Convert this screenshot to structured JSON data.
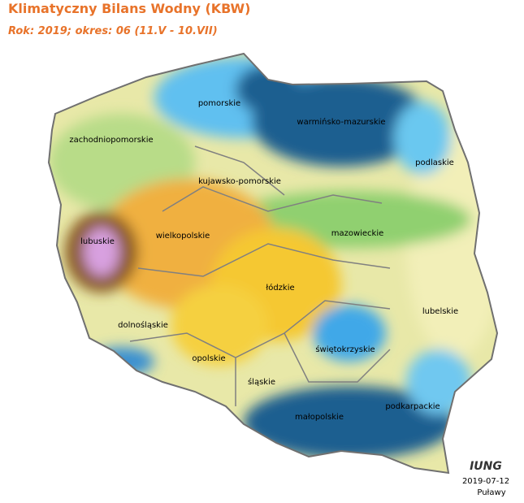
{
  "title": "Klimatyczny Bilans Wodny (KBW)",
  "subtitle": "Rok: 2019; okres: 06 (11.V - 10.VII)",
  "regions": [
    "pomorskie",
    "warmińsko-mazurskie",
    "zachodniopomorskie",
    "podlaskie",
    "kujawsko-pomorskie",
    "mazowieckie",
    "wielkopolskie",
    "lubuskie",
    "łódzkie",
    "lubelskie",
    "dolnośląskie",
    "świętokrzyskie",
    "opolskie",
    "śląskie",
    "podkarpackie",
    "małopolskie"
  ],
  "logo": "IUNG",
  "date": "2019-07-12",
  "place": "Puławy"
}
